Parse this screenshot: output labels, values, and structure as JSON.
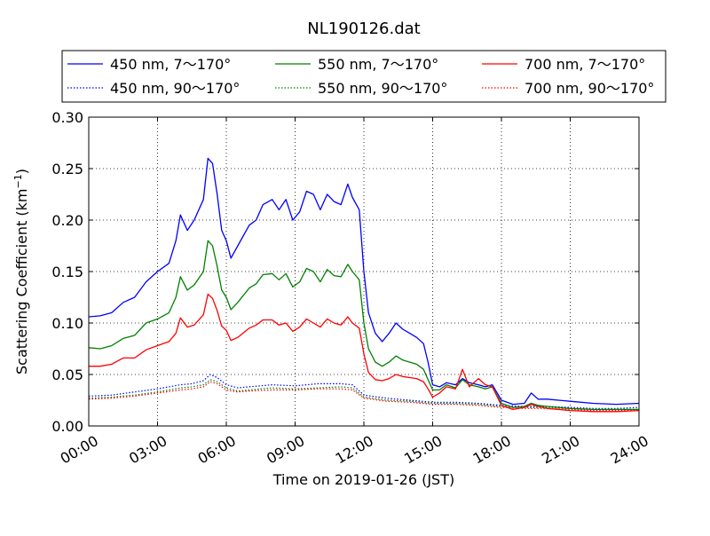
{
  "chart_data": {
    "type": "line",
    "title": "NL190126.dat",
    "xlabel": "Time on 2019-01-26 (JST)",
    "ylabel": "Scattering Coefficient (km",
    "ylabel_sup": "−1",
    "ylabel_end": ")",
    "xlim": [
      0,
      24
    ],
    "ylim": [
      0.0,
      0.3
    ],
    "x_ticks": [
      0,
      3,
      6,
      9,
      12,
      15,
      18,
      21,
      24
    ],
    "x_tick_labels": [
      "00:00",
      "03:00",
      "06:00",
      "09:00",
      "12:00",
      "15:00",
      "18:00",
      "21:00",
      "24:00"
    ],
    "y_ticks": [
      0.0,
      0.05,
      0.1,
      0.15,
      0.2,
      0.25,
      0.3
    ],
    "y_tick_labels": [
      "0.00",
      "0.05",
      "0.10",
      "0.15",
      "0.20",
      "0.25",
      "0.30"
    ],
    "grid": true,
    "legend_position": "top (above plot)",
    "series": [
      {
        "name": "450 nm, 7～170°",
        "color": "#0000ff",
        "style": "solid",
        "points": [
          [
            0,
            0.106
          ],
          [
            0.5,
            0.107
          ],
          [
            1,
            0.11
          ],
          [
            1.5,
            0.12
          ],
          [
            2,
            0.125
          ],
          [
            2.5,
            0.14
          ],
          [
            3,
            0.15
          ],
          [
            3.5,
            0.158
          ],
          [
            3.8,
            0.18
          ],
          [
            4,
            0.205
          ],
          [
            4.3,
            0.19
          ],
          [
            4.6,
            0.2
          ],
          [
            5,
            0.22
          ],
          [
            5.2,
            0.26
          ],
          [
            5.4,
            0.255
          ],
          [
            5.6,
            0.225
          ],
          [
            5.8,
            0.19
          ],
          [
            6,
            0.18
          ],
          [
            6.2,
            0.163
          ],
          [
            6.5,
            0.175
          ],
          [
            7,
            0.195
          ],
          [
            7.3,
            0.2
          ],
          [
            7.6,
            0.215
          ],
          [
            8,
            0.22
          ],
          [
            8.3,
            0.21
          ],
          [
            8.6,
            0.22
          ],
          [
            8.9,
            0.2
          ],
          [
            9.2,
            0.208
          ],
          [
            9.5,
            0.228
          ],
          [
            9.8,
            0.225
          ],
          [
            10.1,
            0.21
          ],
          [
            10.4,
            0.225
          ],
          [
            10.7,
            0.218
          ],
          [
            11,
            0.215
          ],
          [
            11.3,
            0.235
          ],
          [
            11.5,
            0.222
          ],
          [
            11.8,
            0.21
          ],
          [
            12,
            0.15
          ],
          [
            12.2,
            0.11
          ],
          [
            12.5,
            0.09
          ],
          [
            12.8,
            0.082
          ],
          [
            13.1,
            0.09
          ],
          [
            13.4,
            0.1
          ],
          [
            13.7,
            0.094
          ],
          [
            14,
            0.09
          ],
          [
            14.3,
            0.086
          ],
          [
            14.6,
            0.08
          ],
          [
            14.8,
            0.062
          ],
          [
            15,
            0.04
          ],
          [
            15.3,
            0.038
          ],
          [
            15.6,
            0.042
          ],
          [
            16,
            0.04
          ],
          [
            16.3,
            0.046
          ],
          [
            16.6,
            0.042
          ],
          [
            17,
            0.04
          ],
          [
            17.3,
            0.038
          ],
          [
            17.6,
            0.04
          ],
          [
            18,
            0.025
          ],
          [
            18.5,
            0.021
          ],
          [
            19,
            0.022
          ],
          [
            19.3,
            0.032
          ],
          [
            19.6,
            0.026
          ],
          [
            20,
            0.026
          ],
          [
            21,
            0.024
          ],
          [
            22,
            0.022
          ],
          [
            23,
            0.021
          ],
          [
            24,
            0.022
          ]
        ]
      },
      {
        "name": "450 nm, 90～170°",
        "color": "#0000ff",
        "style": "dotted",
        "points": [
          [
            0,
            0.029
          ],
          [
            1,
            0.03
          ],
          [
            2,
            0.033
          ],
          [
            3,
            0.036
          ],
          [
            4,
            0.04
          ],
          [
            4.5,
            0.041
          ],
          [
            5,
            0.044
          ],
          [
            5.3,
            0.05
          ],
          [
            5.6,
            0.047
          ],
          [
            6,
            0.04
          ],
          [
            6.5,
            0.037
          ],
          [
            7,
            0.038
          ],
          [
            8,
            0.04
          ],
          [
            9,
            0.039
          ],
          [
            10,
            0.041
          ],
          [
            11,
            0.041
          ],
          [
            11.5,
            0.04
          ],
          [
            12,
            0.03
          ],
          [
            13,
            0.027
          ],
          [
            14,
            0.025
          ],
          [
            15,
            0.023
          ],
          [
            16,
            0.023
          ],
          [
            17,
            0.022
          ],
          [
            18,
            0.02
          ],
          [
            19,
            0.019
          ],
          [
            20,
            0.019
          ],
          [
            21,
            0.018
          ],
          [
            22,
            0.017
          ],
          [
            23,
            0.017
          ],
          [
            24,
            0.018
          ]
        ]
      },
      {
        "name": "550 nm, 7～170°",
        "color": "#008000",
        "style": "solid",
        "points": [
          [
            0,
            0.076
          ],
          [
            0.5,
            0.075
          ],
          [
            1,
            0.078
          ],
          [
            1.5,
            0.085
          ],
          [
            2,
            0.088
          ],
          [
            2.5,
            0.1
          ],
          [
            3,
            0.104
          ],
          [
            3.5,
            0.11
          ],
          [
            3.8,
            0.125
          ],
          [
            4,
            0.145
          ],
          [
            4.3,
            0.132
          ],
          [
            4.6,
            0.137
          ],
          [
            5,
            0.15
          ],
          [
            5.2,
            0.18
          ],
          [
            5.4,
            0.175
          ],
          [
            5.6,
            0.155
          ],
          [
            5.8,
            0.132
          ],
          [
            6,
            0.125
          ],
          [
            6.2,
            0.113
          ],
          [
            6.5,
            0.12
          ],
          [
            7,
            0.134
          ],
          [
            7.3,
            0.138
          ],
          [
            7.6,
            0.147
          ],
          [
            8,
            0.148
          ],
          [
            8.3,
            0.142
          ],
          [
            8.6,
            0.148
          ],
          [
            8.9,
            0.135
          ],
          [
            9.2,
            0.14
          ],
          [
            9.5,
            0.153
          ],
          [
            9.8,
            0.15
          ],
          [
            10.1,
            0.14
          ],
          [
            10.4,
            0.152
          ],
          [
            10.7,
            0.146
          ],
          [
            11,
            0.145
          ],
          [
            11.3,
            0.157
          ],
          [
            11.5,
            0.15
          ],
          [
            11.8,
            0.142
          ],
          [
            12,
            0.1
          ],
          [
            12.2,
            0.075
          ],
          [
            12.5,
            0.062
          ],
          [
            12.8,
            0.058
          ],
          [
            13.1,
            0.062
          ],
          [
            13.4,
            0.068
          ],
          [
            13.7,
            0.064
          ],
          [
            14,
            0.062
          ],
          [
            14.3,
            0.06
          ],
          [
            14.6,
            0.055
          ],
          [
            14.8,
            0.045
          ],
          [
            15,
            0.035
          ],
          [
            15.3,
            0.035
          ],
          [
            15.6,
            0.04
          ],
          [
            16,
            0.037
          ],
          [
            16.3,
            0.045
          ],
          [
            16.6,
            0.04
          ],
          [
            17,
            0.038
          ],
          [
            17.3,
            0.036
          ],
          [
            17.6,
            0.038
          ],
          [
            18,
            0.022
          ],
          [
            18.5,
            0.018
          ],
          [
            19,
            0.019
          ],
          [
            19.3,
            0.022
          ],
          [
            19.6,
            0.02
          ],
          [
            20,
            0.019
          ],
          [
            21,
            0.017
          ],
          [
            22,
            0.016
          ],
          [
            23,
            0.016
          ],
          [
            24,
            0.016
          ]
        ]
      },
      {
        "name": "550 nm, 90～170°",
        "color": "#008000",
        "style": "dotted",
        "points": [
          [
            0,
            0.027
          ],
          [
            1,
            0.028
          ],
          [
            2,
            0.03
          ],
          [
            3,
            0.033
          ],
          [
            4,
            0.037
          ],
          [
            4.5,
            0.038
          ],
          [
            5,
            0.04
          ],
          [
            5.3,
            0.045
          ],
          [
            5.6,
            0.043
          ],
          [
            6,
            0.037
          ],
          [
            6.5,
            0.034
          ],
          [
            7,
            0.035
          ],
          [
            8,
            0.037
          ],
          [
            9,
            0.036
          ],
          [
            10,
            0.037
          ],
          [
            11,
            0.038
          ],
          [
            11.5,
            0.037
          ],
          [
            12,
            0.028
          ],
          [
            13,
            0.025
          ],
          [
            14,
            0.024
          ],
          [
            15,
            0.022
          ],
          [
            16,
            0.022
          ],
          [
            17,
            0.021
          ],
          [
            18,
            0.019
          ],
          [
            19,
            0.018
          ],
          [
            20,
            0.018
          ],
          [
            21,
            0.017
          ],
          [
            22,
            0.016
          ],
          [
            23,
            0.016
          ],
          [
            24,
            0.016
          ]
        ]
      },
      {
        "name": "700 nm, 7～170°",
        "color": "#ff0000",
        "style": "solid",
        "points": [
          [
            0,
            0.058
          ],
          [
            0.5,
            0.058
          ],
          [
            1,
            0.06
          ],
          [
            1.5,
            0.066
          ],
          [
            2,
            0.066
          ],
          [
            2.5,
            0.074
          ],
          [
            3,
            0.078
          ],
          [
            3.5,
            0.082
          ],
          [
            3.8,
            0.09
          ],
          [
            4,
            0.105
          ],
          [
            4.3,
            0.096
          ],
          [
            4.6,
            0.098
          ],
          [
            5,
            0.108
          ],
          [
            5.2,
            0.128
          ],
          [
            5.4,
            0.124
          ],
          [
            5.6,
            0.112
          ],
          [
            5.8,
            0.097
          ],
          [
            6,
            0.093
          ],
          [
            6.2,
            0.083
          ],
          [
            6.5,
            0.086
          ],
          [
            7,
            0.095
          ],
          [
            7.3,
            0.098
          ],
          [
            7.6,
            0.103
          ],
          [
            8,
            0.103
          ],
          [
            8.3,
            0.098
          ],
          [
            8.6,
            0.1
          ],
          [
            8.9,
            0.092
          ],
          [
            9.2,
            0.096
          ],
          [
            9.5,
            0.104
          ],
          [
            9.8,
            0.1
          ],
          [
            10.1,
            0.096
          ],
          [
            10.4,
            0.104
          ],
          [
            10.7,
            0.1
          ],
          [
            11,
            0.098
          ],
          [
            11.3,
            0.106
          ],
          [
            11.5,
            0.1
          ],
          [
            11.8,
            0.095
          ],
          [
            12,
            0.07
          ],
          [
            12.2,
            0.052
          ],
          [
            12.5,
            0.045
          ],
          [
            12.8,
            0.044
          ],
          [
            13.1,
            0.046
          ],
          [
            13.4,
            0.05
          ],
          [
            13.7,
            0.048
          ],
          [
            14,
            0.047
          ],
          [
            14.3,
            0.046
          ],
          [
            14.6,
            0.043
          ],
          [
            14.8,
            0.036
          ],
          [
            15,
            0.028
          ],
          [
            15.3,
            0.032
          ],
          [
            15.6,
            0.038
          ],
          [
            16,
            0.036
          ],
          [
            16.3,
            0.055
          ],
          [
            16.6,
            0.038
          ],
          [
            17,
            0.046
          ],
          [
            17.3,
            0.04
          ],
          [
            17.6,
            0.038
          ],
          [
            18,
            0.02
          ],
          [
            18.5,
            0.016
          ],
          [
            19,
            0.018
          ],
          [
            19.3,
            0.021
          ],
          [
            19.6,
            0.019
          ],
          [
            20,
            0.017
          ],
          [
            21,
            0.015
          ],
          [
            22,
            0.014
          ],
          [
            23,
            0.014
          ],
          [
            24,
            0.015
          ]
        ]
      },
      {
        "name": "700 nm, 90～170°",
        "color": "#ff0000",
        "style": "dotted",
        "points": [
          [
            0,
            0.026
          ],
          [
            1,
            0.027
          ],
          [
            2,
            0.029
          ],
          [
            3,
            0.032
          ],
          [
            4,
            0.035
          ],
          [
            4.5,
            0.036
          ],
          [
            5,
            0.038
          ],
          [
            5.3,
            0.043
          ],
          [
            5.6,
            0.041
          ],
          [
            6,
            0.035
          ],
          [
            6.5,
            0.033
          ],
          [
            7,
            0.034
          ],
          [
            8,
            0.035
          ],
          [
            9,
            0.035
          ],
          [
            10,
            0.036
          ],
          [
            11,
            0.036
          ],
          [
            11.5,
            0.035
          ],
          [
            12,
            0.027
          ],
          [
            13,
            0.024
          ],
          [
            14,
            0.023
          ],
          [
            15,
            0.021
          ],
          [
            16,
            0.021
          ],
          [
            17,
            0.02
          ],
          [
            18,
            0.018
          ],
          [
            19,
            0.017
          ],
          [
            20,
            0.017
          ],
          [
            21,
            0.016
          ],
          [
            22,
            0.015
          ],
          [
            23,
            0.015
          ],
          [
            24,
            0.015
          ]
        ]
      }
    ]
  }
}
